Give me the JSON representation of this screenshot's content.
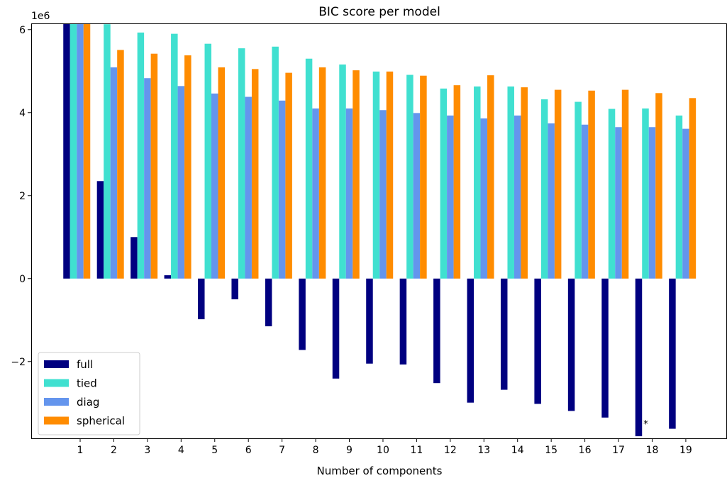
{
  "chart_data": {
    "type": "bar",
    "title": "BIC score per model",
    "xlabel": "Number of components",
    "ylabel": "",
    "offset_text": "1e6",
    "y_scale": 1000000,
    "categories": [
      "1",
      "2",
      "3",
      "4",
      "5",
      "6",
      "7",
      "8",
      "9",
      "10",
      "11",
      "12",
      "13",
      "14",
      "15",
      "16",
      "17",
      "18",
      "19"
    ],
    "y_ticks": [
      -2000000,
      0,
      2000000,
      4000000,
      6000000
    ],
    "y_tick_labels": [
      "−2",
      "0",
      "2",
      "4",
      "6"
    ],
    "ylim": [
      -3850000,
      6150000
    ],
    "series": [
      {
        "name": "full",
        "color": "#000080",
        "values": [
          6150000,
          2350000,
          1000000,
          80000,
          -980000,
          -500000,
          -1150000,
          -1720000,
          -2410000,
          -2050000,
          -2070000,
          -2520000,
          -2990000,
          -2680000,
          -3020000,
          -3190000,
          -3350000,
          -3800000,
          -3620000
        ]
      },
      {
        "name": "tied",
        "color": "#40e0d0",
        "values": [
          6150000,
          6130000,
          5930000,
          5900000,
          5660000,
          5550000,
          5590000,
          5300000,
          5160000,
          4990000,
          4910000,
          4580000,
          4630000,
          4630000,
          4320000,
          4260000,
          4090000,
          4100000,
          3930000
        ]
      },
      {
        "name": "diag",
        "color": "#6495ed",
        "values": [
          6150000,
          5090000,
          4830000,
          4640000,
          4460000,
          4380000,
          4290000,
          4100000,
          4100000,
          4060000,
          3990000,
          3930000,
          3860000,
          3930000,
          3740000,
          3710000,
          3650000,
          3650000,
          3610000
        ]
      },
      {
        "name": "spherical",
        "color": "#ff8c00",
        "values": [
          6150000,
          5510000,
          5420000,
          5380000,
          5090000,
          5050000,
          4960000,
          5090000,
          5020000,
          4990000,
          4890000,
          4660000,
          4900000,
          4610000,
          4550000,
          4530000,
          4550000,
          4470000,
          4350000
        ]
      }
    ],
    "annotations": [
      {
        "text": "*",
        "category": "18",
        "y": -3380000
      }
    ],
    "legend": {
      "position": "lower left"
    },
    "grid": false
  }
}
